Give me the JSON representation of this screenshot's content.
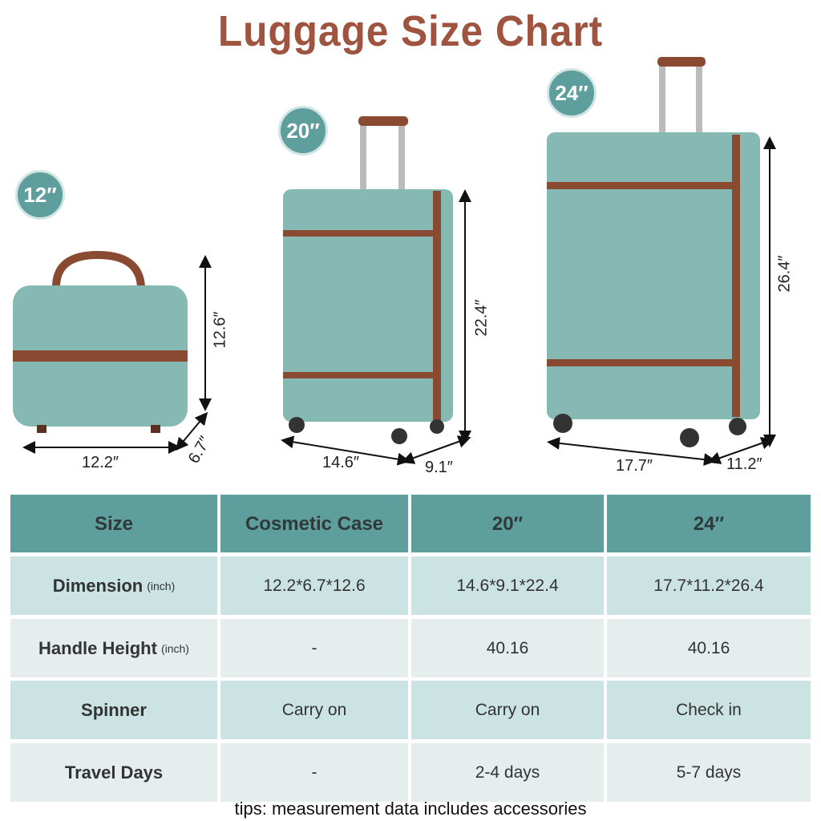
{
  "title": "Luggage Size Chart",
  "badges": [
    "12″",
    "20″",
    "24″"
  ],
  "dimensions": {
    "cosmetic": {
      "width": "12.2″",
      "depth": "6.7″",
      "height": "12.6″"
    },
    "s20": {
      "width": "14.6″",
      "depth": "9.1″",
      "height": "22.4″"
    },
    "s24": {
      "width": "17.7″",
      "depth": "11.2″",
      "height": "26.4″"
    }
  },
  "table": {
    "headers": [
      "Size",
      "Cosmetic Case",
      "20″",
      "24″"
    ],
    "rows": [
      {
        "label": "Dimension",
        "unit": "(inch)",
        "values": [
          "12.2*6.7*12.6",
          "14.6*9.1*22.4",
          "17.7*11.2*26.4"
        ]
      },
      {
        "label": "Handle Height",
        "unit": "(inch)",
        "values": [
          "-",
          "40.16",
          "40.16"
        ]
      },
      {
        "label": "Spinner",
        "unit": "",
        "values": [
          "Carry on",
          "Carry on",
          "Check in"
        ]
      },
      {
        "label": "Travel Days",
        "unit": "",
        "values": [
          "-",
          "2-4 days",
          "5-7 days"
        ]
      }
    ]
  },
  "tips": "tips: measurement data includes accessories",
  "colors": {
    "header": "#5e9e9c",
    "row_dark": "#cbe3e2",
    "row_light": "#e5eeed",
    "title": "#a0533f",
    "case": "#86b8b4",
    "trim": "#8a4a32"
  }
}
